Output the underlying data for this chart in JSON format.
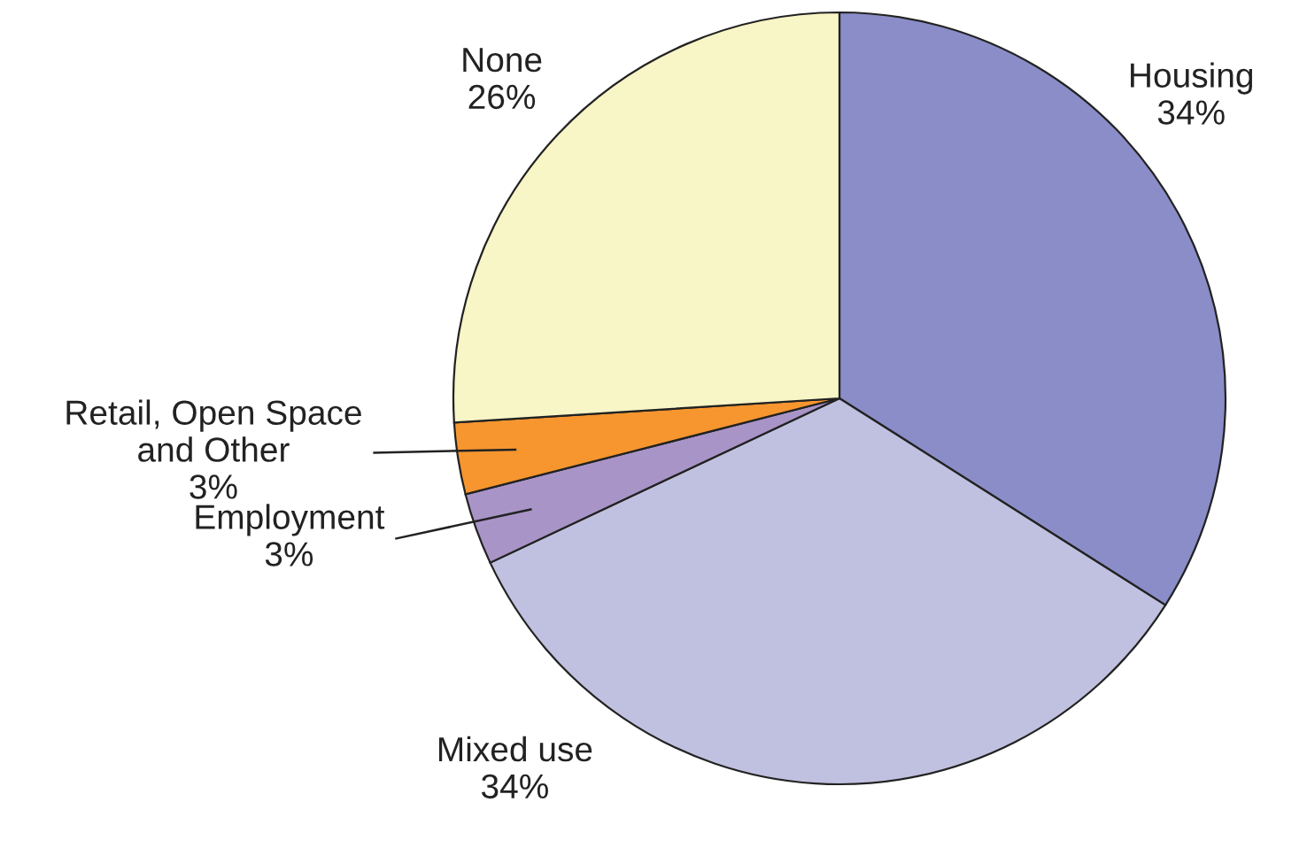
{
  "chart_data": {
    "type": "pie",
    "categories": [
      "Housing",
      "Mixed use",
      "Employment",
      "Retail, Open Space\nand Other",
      "None"
    ],
    "values": [
      34,
      34,
      3,
      3,
      26
    ],
    "colors": [
      "#8a8dc7",
      "#c0c0e0",
      "#a994c8",
      "#f7962e",
      "#f8f5c6"
    ],
    "value_labels": [
      "34%",
      "34%",
      "3%",
      "3%",
      "26%"
    ]
  }
}
